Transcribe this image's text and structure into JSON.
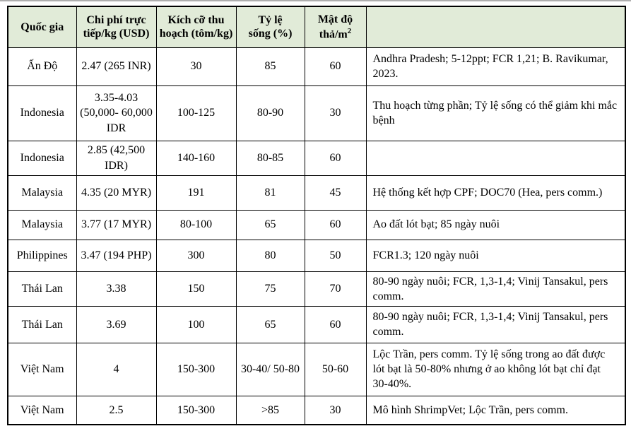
{
  "style": {
    "header_bg": "#e1ebd8",
    "border_color": "#000000",
    "top_rule_color": "#aeaeae"
  },
  "table": {
    "headers": {
      "country": "Quốc gia",
      "cost": "Chi phí trực tiếp/kg (USD)",
      "size": "Kích cỡ thu hoạch (tôm/kg)",
      "survival": "Tỷ lệ sống (%)",
      "density_text": "Mật độ thả/m",
      "density_sup": "2",
      "notes": ""
    },
    "rows": [
      {
        "country": "Ấn Độ",
        "cost": "2.47 (265 INR)",
        "size": "30",
        "survival": "85",
        "density": "60",
        "notes": "Andhra Pradesh; 5-12ppt; FCR 1,21; B. Ravikumar, 2023."
      },
      {
        "country": "Indonesia",
        "cost": "3.35-4.03 (50,000- 60,000 IDR",
        "size": "100-125",
        "survival": "80-90",
        "density": "30",
        "notes": "Thu hoạch từng phần; Tỷ lệ sống có thể giảm khi mắc bệnh"
      },
      {
        "country": "Indonesia",
        "cost": "2.85 (42,500 IDR)",
        "size": "140-160",
        "survival": "80-85",
        "density": "60",
        "notes": ""
      },
      {
        "country": "Malaysia",
        "cost": "4.35 (20 MYR)",
        "size": "191",
        "survival": "81",
        "density": "45",
        "notes": "Hệ thống kết hợp CPF; DOC70 (Hea, pers comm.)"
      },
      {
        "country": "Malaysia",
        "cost": "3.77 (17 MYR)",
        "size": "80-100",
        "survival": "65",
        "density": "60",
        "notes": "Ao đất lót bạt; 85 ngày nuôi"
      },
      {
        "country": "Philippines",
        "cost": "3.47 (194 PHP)",
        "size": "300",
        "survival": "80",
        "density": "50",
        "notes": "FCR1.3; 120 ngày nuôi"
      },
      {
        "country": "Thái Lan",
        "cost": "3.38",
        "size": "150",
        "survival": "75",
        "density": "70",
        "notes": "80-90 ngày nuôi; FCR, 1,3-1,4; Vinij Tansakul, pers comm."
      },
      {
        "country": "Thái Lan",
        "cost": "3.69",
        "size": "100",
        "survival": "65",
        "density": "60",
        "notes": "80-90 ngày nuôi; FCR, 1,3-1,4; Vinij Tansakul, pers comm."
      },
      {
        "country": "Việt Nam",
        "cost": "4",
        "size": "150-300",
        "survival": "30-40/ 50-80",
        "density": "50-60",
        "notes": "Lộc Trần, pers comm. Tỷ lệ sống trong ao đất được lót bạt là 50-80% nhưng ở ao không lót bạt chỉ đạt 30-40%."
      },
      {
        "country": "Việt Nam",
        "cost": "2.5",
        "size": "150-300",
        "survival": ">85",
        "density": "30",
        "notes": "Mô hình ShrimpVet; Lộc Trần, pers comm."
      }
    ]
  }
}
